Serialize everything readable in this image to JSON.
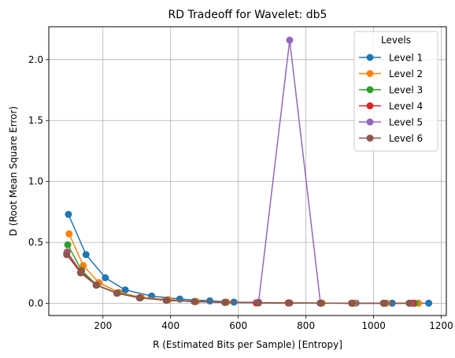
{
  "chart_data": {
    "type": "line",
    "title": "RD Tradeoff for Wavelet: db5",
    "xlabel": "R (Estimated Bits per Sample) [Entropy]",
    "ylabel": "D (Root Mean Square Error)",
    "xlim": [
      40,
      1215
    ],
    "ylim": [
      -0.1,
      2.27
    ],
    "xticks": [
      200,
      400,
      600,
      800,
      1000,
      1200
    ],
    "yticks": [
      0.0,
      0.5,
      1.0,
      1.5,
      2.0
    ],
    "xtick_labels": [
      "200",
      "400",
      "600",
      "800",
      "1000",
      "1200"
    ],
    "ytick_labels": [
      "0.0",
      "0.5",
      "1.0",
      "1.5",
      "2.0"
    ],
    "grid": true,
    "legend": {
      "title": "Levels",
      "position": "top-right"
    },
    "series": [
      {
        "name": "Level 1",
        "color": "#1f77b4",
        "x": [
          98,
          150,
          207,
          266,
          344,
          427,
          516,
          587,
          657,
          748,
          842,
          948,
          1055,
          1163
        ],
        "y": [
          0.73,
          0.4,
          0.21,
          0.11,
          0.06,
          0.035,
          0.02,
          0.01,
          0.005,
          0.003,
          0.002,
          0.002,
          0.001,
          0.001
        ]
      },
      {
        "name": "Level 2",
        "color": "#ff7f0e",
        "x": [
          100,
          142,
          188,
          247,
          313,
          394,
          476,
          566,
          657,
          752,
          848,
          943,
          1038,
          1133
        ],
        "y": [
          0.57,
          0.31,
          0.17,
          0.09,
          0.05,
          0.03,
          0.015,
          0.01,
          0.005,
          0.003,
          0.002,
          0.002,
          0.001,
          0.001
        ]
      },
      {
        "name": "Level 3",
        "color": "#2ca02c",
        "x": [
          96,
          137,
          182,
          243,
          310,
          389,
          472,
          562,
          654,
          749,
          845,
          938,
          1033,
          1122
        ],
        "y": [
          0.48,
          0.27,
          0.15,
          0.085,
          0.045,
          0.025,
          0.015,
          0.008,
          0.004,
          0.003,
          0.002,
          0.001,
          0.001,
          0.001
        ]
      },
      {
        "name": "Level 4",
        "color": "#d62728",
        "x": [
          94,
          135,
          180,
          242,
          309,
          388,
          471,
          561,
          653,
          748,
          844,
          937,
          1031,
          1115
        ],
        "y": [
          0.42,
          0.26,
          0.15,
          0.083,
          0.045,
          0.025,
          0.015,
          0.008,
          0.004,
          0.003,
          0.002,
          0.001,
          0.001,
          0.001
        ]
      },
      {
        "name": "Level 5",
        "color": "#9467bd",
        "x": [
          93,
          134,
          180,
          241,
          308,
          387,
          470,
          560,
          660,
          752,
          843,
          936,
          1030,
          1108
        ],
        "y": [
          0.41,
          0.25,
          0.15,
          0.083,
          0.045,
          0.025,
          0.015,
          0.008,
          0.01,
          2.16,
          0.002,
          0.001,
          0.001,
          0.001
        ]
      },
      {
        "name": "Level 6",
        "color": "#8c564b",
        "x": [
          93,
          134,
          180,
          241,
          308,
          387,
          470,
          560,
          660,
          752,
          843,
          935,
          1029,
          1105
        ],
        "y": [
          0.4,
          0.25,
          0.15,
          0.083,
          0.045,
          0.025,
          0.015,
          0.008,
          0.004,
          0.003,
          0.002,
          0.001,
          0.001,
          0.001
        ]
      }
    ]
  }
}
